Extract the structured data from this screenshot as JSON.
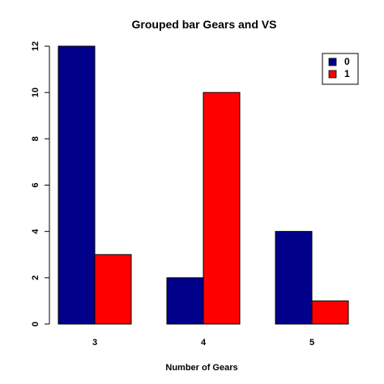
{
  "chart_data": {
    "type": "bar",
    "title": "Grouped bar Gears and VS",
    "xlabel": "Number of Gears",
    "ylabel": "",
    "categories": [
      "3",
      "4",
      "5"
    ],
    "series": [
      {
        "name": "0",
        "values": [
          12,
          2,
          4
        ],
        "color": "#00008B"
      },
      {
        "name": "1",
        "values": [
          3,
          10,
          1
        ],
        "color": "#FF0000"
      }
    ],
    "ylim": [
      0,
      12
    ],
    "yticks": [
      "0",
      "2",
      "4",
      "6",
      "8",
      "10",
      "12"
    ],
    "legend": "top-right",
    "grid": false
  }
}
